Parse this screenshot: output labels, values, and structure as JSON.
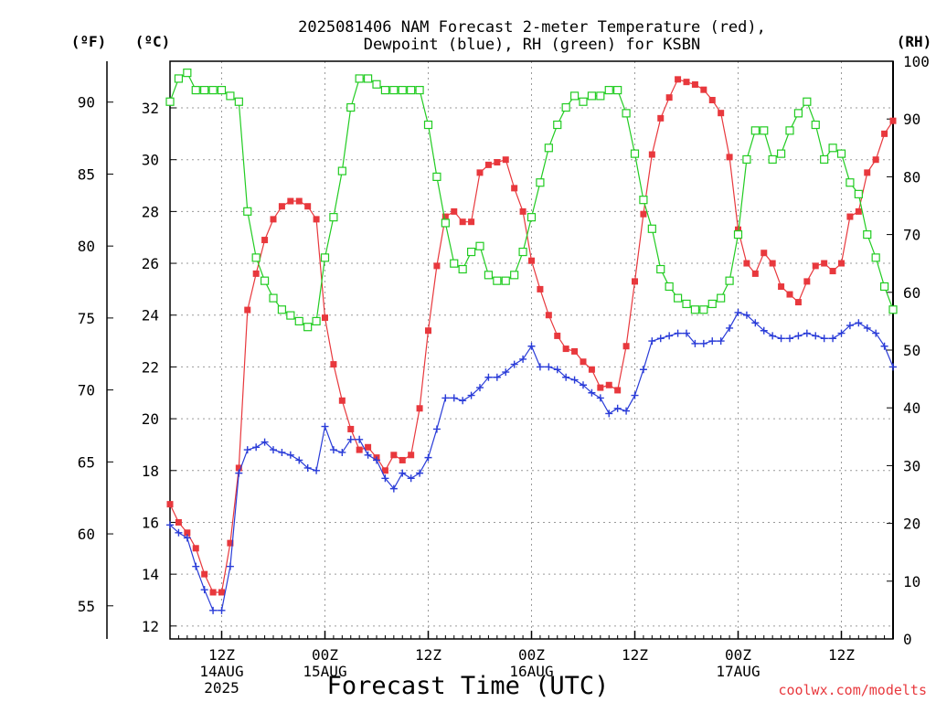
{
  "chart_data": {
    "type": "line",
    "title": "2025081406 NAM Forecast 2-meter Temperature (red),",
    "title_line2": "Dewpoint (blue), RH (green) for KSBN",
    "left_unit_f": "(ºF)",
    "left_unit_c": "(ºC)",
    "right_unit": "(RH)",
    "xlabel": "Forecast Time (UTC)",
    "credit": "coolwx.com/modelts",
    "x_unit": "forecast hour (00 = 2025081406 UTC)",
    "x_range": [
      0,
      84
    ],
    "ylim_c": [
      11.5,
      33.8
    ],
    "ylim_rh": [
      0,
      100
    ],
    "y_ticks_c": [
      12,
      14,
      16,
      18,
      20,
      22,
      24,
      26,
      28,
      30,
      32
    ],
    "y_ticks_f": [
      55,
      60,
      65,
      70,
      75,
      80,
      85,
      90
    ],
    "y_ticks_rh": [
      0,
      10,
      20,
      30,
      40,
      50,
      60,
      70,
      80,
      90,
      100
    ],
    "grid": true,
    "x_ticks": [
      {
        "hour": 6,
        "lines": [
          "12Z",
          "14AUG",
          "2025"
        ]
      },
      {
        "hour": 18,
        "lines": [
          "00Z",
          "15AUG"
        ]
      },
      {
        "hour": 30,
        "lines": [
          "12Z"
        ]
      },
      {
        "hour": 42,
        "lines": [
          "00Z",
          "16AUG"
        ]
      },
      {
        "hour": 54,
        "lines": [
          "12Z"
        ]
      },
      {
        "hour": 66,
        "lines": [
          "00Z",
          "17AUG"
        ]
      },
      {
        "hour": 78,
        "lines": [
          "12Z"
        ]
      }
    ],
    "colors": {
      "temperature": "#e8383d",
      "dewpoint": "#2a3cd8",
      "rh": "#22cc22"
    },
    "series": [
      {
        "name": "Temperature (red)",
        "axis": "C",
        "marker": "filled-square",
        "x": [
          0,
          1,
          2,
          3,
          4,
          5,
          6,
          7,
          8,
          9,
          10,
          11,
          12,
          13,
          14,
          15,
          16,
          17,
          18,
          19,
          20,
          21,
          22,
          23,
          24,
          25,
          26,
          27,
          28,
          29,
          30,
          31,
          32,
          33,
          34,
          35,
          36,
          37,
          38,
          39,
          40,
          41,
          42,
          43,
          44,
          45,
          46,
          47,
          48,
          49,
          50,
          51,
          52,
          53,
          54,
          55,
          56,
          57,
          58,
          59,
          60,
          61,
          62,
          63,
          64,
          65,
          66,
          67,
          68,
          69,
          70,
          71,
          72,
          73,
          74,
          75,
          76,
          77,
          78,
          79,
          80,
          81,
          82,
          83,
          84
        ],
        "values": [
          16.7,
          16.0,
          15.6,
          15.0,
          14.0,
          13.3,
          13.3,
          15.2,
          18.1,
          24.2,
          25.6,
          26.9,
          27.7,
          28.2,
          28.4,
          28.4,
          28.2,
          27.7,
          23.9,
          22.1,
          20.7,
          19.6,
          18.8,
          18.9,
          18.5,
          18.0,
          18.6,
          18.4,
          18.6,
          20.4,
          23.4,
          25.9,
          27.8,
          28.0,
          27.6,
          27.6,
          29.5,
          29.8,
          29.9,
          30.0,
          28.9,
          28.0,
          26.1,
          25.0,
          24.0,
          23.2,
          22.7,
          22.6,
          22.2,
          21.9,
          21.2,
          21.3,
          21.1,
          22.8,
          25.3,
          27.9,
          30.2,
          31.6,
          32.4,
          33.1,
          33.0,
          32.9,
          32.7,
          32.3,
          31.8,
          30.1,
          27.3,
          26.0,
          25.6,
          26.4,
          26.0,
          25.1,
          24.8,
          24.5,
          25.3,
          25.9,
          26.0,
          25.7,
          26.0,
          27.8,
          28.0,
          29.5,
          30.0,
          31.0,
          31.5
        ]
      },
      {
        "name": "Dewpoint (blue)",
        "axis": "C",
        "marker": "plus",
        "x": [
          0,
          1,
          2,
          3,
          4,
          5,
          6,
          7,
          8,
          9,
          10,
          11,
          12,
          13,
          14,
          15,
          16,
          17,
          18,
          19,
          20,
          21,
          22,
          23,
          24,
          25,
          26,
          27,
          28,
          29,
          30,
          31,
          32,
          33,
          34,
          35,
          36,
          37,
          38,
          39,
          40,
          41,
          42,
          43,
          44,
          45,
          46,
          47,
          48,
          49,
          50,
          51,
          52,
          53,
          54,
          55,
          56,
          57,
          58,
          59,
          60,
          61,
          62,
          63,
          64,
          65,
          66,
          67,
          68,
          69,
          70,
          71,
          72,
          73,
          74,
          75,
          76,
          77,
          78,
          79,
          80,
          81,
          82,
          83,
          84
        ],
        "values": [
          15.9,
          15.6,
          15.4,
          14.3,
          13.4,
          12.6,
          12.6,
          14.3,
          17.9,
          18.8,
          18.9,
          19.1,
          18.8,
          18.7,
          18.6,
          18.4,
          18.1,
          18.0,
          19.7,
          18.8,
          18.7,
          19.2,
          19.2,
          18.6,
          18.4,
          17.7,
          17.3,
          17.9,
          17.7,
          17.9,
          18.5,
          19.6,
          20.8,
          20.8,
          20.7,
          20.9,
          21.2,
          21.6,
          21.6,
          21.8,
          22.1,
          22.3,
          22.8,
          22.0,
          22.0,
          21.9,
          21.6,
          21.5,
          21.3,
          21.0,
          20.8,
          20.2,
          20.4,
          20.3,
          20.9,
          21.9,
          23.0,
          23.1,
          23.2,
          23.3,
          23.3,
          22.9,
          22.9,
          23.0,
          23.0,
          23.5,
          24.1,
          24.0,
          23.7,
          23.4,
          23.2,
          23.1,
          23.1,
          23.2,
          23.3,
          23.2,
          23.1,
          23.1,
          23.3,
          23.6,
          23.7,
          23.5,
          23.3,
          22.8,
          22.0
        ]
      },
      {
        "name": "RH (green)",
        "axis": "RH",
        "marker": "open-square",
        "x": [
          0,
          1,
          2,
          3,
          4,
          5,
          6,
          7,
          8,
          9,
          10,
          11,
          12,
          13,
          14,
          15,
          16,
          17,
          18,
          19,
          20,
          21,
          22,
          23,
          24,
          25,
          26,
          27,
          28,
          29,
          30,
          31,
          32,
          33,
          34,
          35,
          36,
          37,
          38,
          39,
          40,
          41,
          42,
          43,
          44,
          45,
          46,
          47,
          48,
          49,
          50,
          51,
          52,
          53,
          54,
          55,
          56,
          57,
          58,
          59,
          60,
          61,
          62,
          63,
          64,
          65,
          66,
          67,
          68,
          69,
          70,
          71,
          72,
          73,
          74,
          75,
          76,
          77,
          78,
          79,
          80,
          81,
          82,
          83,
          84
        ],
        "values": [
          93,
          97,
          98,
          95,
          95,
          95,
          95,
          94,
          93,
          74,
          66,
          62,
          59,
          57,
          56,
          55,
          54,
          55,
          66,
          73,
          81,
          92,
          97,
          97,
          96,
          95,
          95,
          95,
          95,
          95,
          89,
          80,
          72,
          65,
          64,
          67,
          68,
          63,
          62,
          62,
          63,
          67,
          73,
          79,
          85,
          89,
          92,
          94,
          93,
          94,
          94,
          95,
          95,
          91,
          84,
          76,
          71,
          64,
          61,
          59,
          58,
          57,
          57,
          58,
          59,
          62,
          70,
          83,
          88,
          88,
          83,
          84,
          88,
          91,
          93,
          89,
          83,
          85,
          84,
          79,
          77,
          70,
          66,
          61,
          57
        ]
      }
    ]
  }
}
